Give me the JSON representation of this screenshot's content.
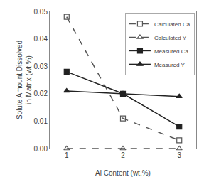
{
  "chart_data": {
    "type": "line",
    "x": [
      1,
      2,
      3
    ],
    "series": [
      {
        "name": "Calculated Ca",
        "color": "#555555",
        "marker": "square-open",
        "line_style": "dashed",
        "values": [
          0.048,
          0.011,
          0.003
        ]
      },
      {
        "name": "Calculated Y",
        "color": "#555555",
        "marker": "triangle-up-open",
        "line_style": "dashed",
        "values": [
          0.0,
          0.0,
          0.0
        ]
      },
      {
        "name": "Measured Ca",
        "color": "#222222",
        "marker": "square",
        "line_style": "solid",
        "values": [
          0.028,
          0.02,
          0.008
        ]
      },
      {
        "name": "Measured Y",
        "color": "#222222",
        "marker": "triangle-up",
        "line_style": "solid",
        "values": [
          0.021,
          0.02,
          0.019
        ]
      }
    ],
    "xlabel": "Al Content (wt.%)",
    "ylabel": "Solute Amount Dissolved\nin Matrix (wt.%)",
    "xlim": [
      0.7,
      3.3
    ],
    "xticks": [
      1,
      2,
      3
    ],
    "ylim": [
      0.0,
      0.05
    ],
    "yticks": [
      {
        "value": 0.0,
        "label": "0.00"
      },
      0.01,
      0.02,
      0.03,
      0.04,
      0.05
    ],
    "grid": false,
    "legend": "upper right"
  }
}
